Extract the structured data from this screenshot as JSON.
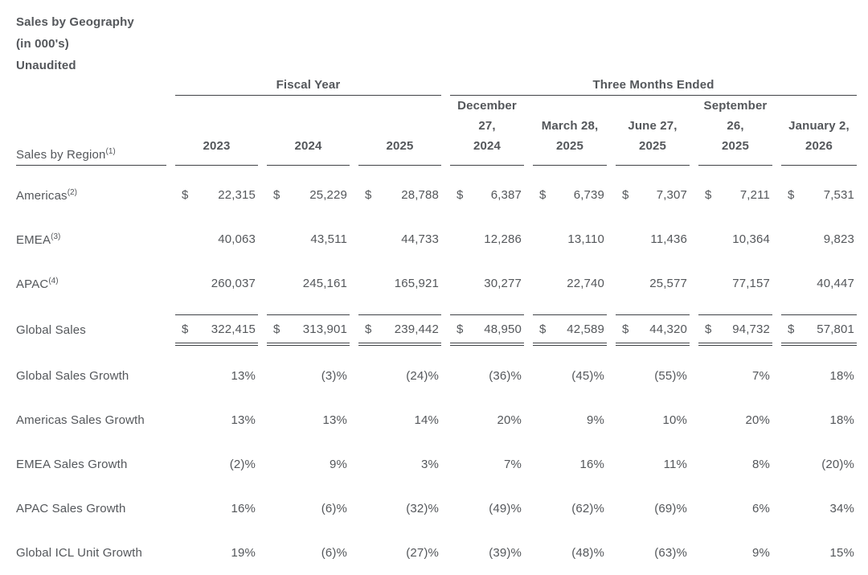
{
  "header": {
    "title": "Sales by Geography",
    "units": "(in 000's)",
    "status": "Unaudited"
  },
  "table": {
    "groups": {
      "fiscal_year": "Fiscal Year",
      "three_months": "Three Months Ended"
    },
    "region_header": {
      "label": "Sales by Region",
      "sup": "(1)"
    },
    "fiscal_columns": [
      "2023",
      "2024",
      "2025"
    ],
    "quarter_columns": [
      "December\n27,\n2024",
      "March 28,\n2025",
      "June 27,\n2025",
      "September\n26,\n2025",
      "January 2,\n2026"
    ],
    "currency_symbol": "$",
    "rows": [
      {
        "label": "Americas",
        "sup": "(2)",
        "values": [
          "22,315",
          "25,229",
          "28,788",
          "6,387",
          "6,739",
          "7,307",
          "7,211",
          "7,531"
        ]
      },
      {
        "label": "EMEA",
        "sup": "(3)",
        "values": [
          "40,063",
          "43,511",
          "44,733",
          "12,286",
          "13,110",
          "11,436",
          "10,364",
          "9,823"
        ]
      },
      {
        "label": "APAC",
        "sup": "(4)",
        "values": [
          "260,037",
          "245,161",
          "165,921",
          "30,277",
          "22,740",
          "25,577",
          "77,157",
          "40,447"
        ]
      },
      {
        "label": "Global Sales",
        "values": [
          "322,415",
          "313,901",
          "239,442",
          "48,950",
          "42,589",
          "44,320",
          "94,732",
          "57,801"
        ]
      },
      {
        "label": "Global Sales Growth",
        "values": [
          "13%",
          "(3)%",
          "(24)%",
          "(36)%",
          "(45)%",
          "(55)%",
          "7%",
          "18%"
        ]
      },
      {
        "label": "Americas Sales Growth",
        "values": [
          "13%",
          "13%",
          "14%",
          "20%",
          "9%",
          "10%",
          "20%",
          "18%"
        ]
      },
      {
        "label": "EMEA Sales Growth",
        "values": [
          "(2)%",
          "9%",
          "3%",
          "7%",
          "16%",
          "11%",
          "8%",
          "(20)%"
        ]
      },
      {
        "label": "APAC Sales Growth",
        "values": [
          "16%",
          "(6)%",
          "(32)%",
          "(49)%",
          "(62)%",
          "(69)%",
          "6%",
          "34%"
        ]
      },
      {
        "label": "Global ICL Unit Growth",
        "values": [
          "19%",
          "(6)%",
          "(27)%",
          "(39)%",
          "(48)%",
          "(63)%",
          "9%",
          "15%"
        ]
      }
    ]
  }
}
